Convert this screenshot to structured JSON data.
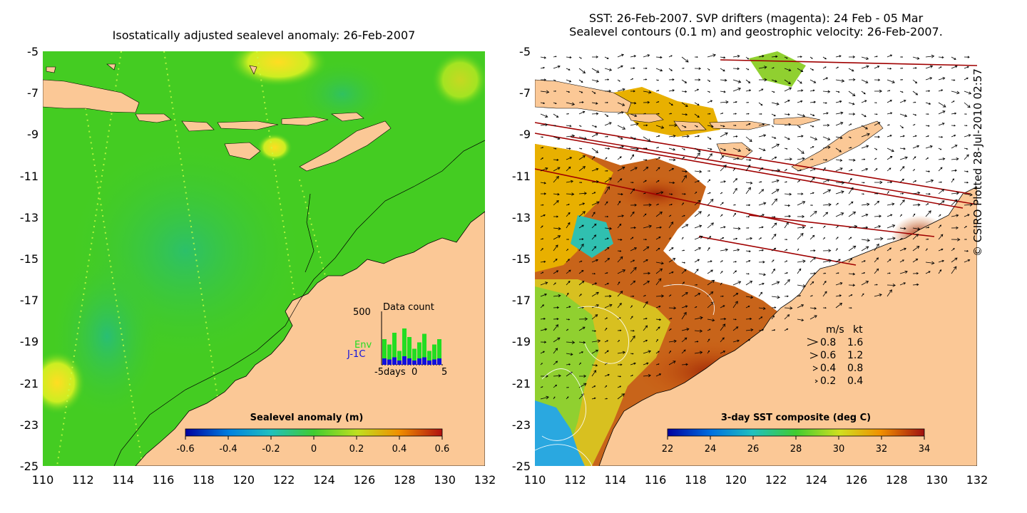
{
  "left_panel": {
    "title": "Isostatically adjusted sealevel anomaly: 26-Feb-2007",
    "colorbar": {
      "label": "Sealevel anomaly (m)",
      "ticks": [
        "-0.6",
        "-0.4",
        "-0.2",
        "0",
        "0.2",
        "0.4",
        "0.6"
      ]
    },
    "inset": {
      "title": "Data count",
      "y_max_label": "500",
      "x_labels": [
        "-5days",
        "0",
        "5"
      ],
      "series": [
        {
          "name": "Env",
          "color": "#22dd22",
          "values": [
            180,
            140,
            230,
            90,
            260,
            200,
            110,
            150,
            220,
            90,
            140,
            180
          ]
        },
        {
          "name": "J-1C",
          "color": "#1010dd",
          "values": [
            60,
            50,
            70,
            40,
            80,
            60,
            40,
            60,
            70,
            40,
            50,
            60
          ]
        }
      ]
    },
    "latitudes": [
      "-5",
      "-7",
      "-9",
      "-11",
      "-13",
      "-15",
      "-17",
      "-19",
      "-21",
      "-23",
      "-25"
    ],
    "longitudes": [
      "110",
      "112",
      "114",
      "116",
      "118",
      "120",
      "122",
      "124",
      "126",
      "128",
      "130",
      "132"
    ]
  },
  "right_panel": {
    "title_line1": "SST: 26-Feb-2007. SVP drifters (magenta): 24 Feb - 05 Mar",
    "title_line2": "Sealevel contours (0.1 m) and geostrophic velocity: 26-Feb-2007.",
    "colorbar": {
      "label": "3-day SST composite (deg C)",
      "ticks": [
        "22",
        "24",
        "26",
        "28",
        "30",
        "32",
        "34"
      ]
    },
    "velocity_legend": {
      "header_ms": "m/s",
      "header_kt": "kt",
      "rows": [
        {
          "ms": "0.8",
          "kt": "1.6"
        },
        {
          "ms": "0.6",
          "kt": "1.2"
        },
        {
          "ms": "0.4",
          "kt": "0.8"
        },
        {
          "ms": "0.2",
          "kt": "0.4"
        }
      ]
    },
    "latitudes": [
      "-5",
      "-7",
      "-9",
      "-11",
      "-13",
      "-15",
      "-17",
      "-19",
      "-21",
      "-23",
      "-25"
    ],
    "longitudes": [
      "110",
      "112",
      "114",
      "116",
      "118",
      "120",
      "122",
      "124",
      "126",
      "128",
      "130",
      "132"
    ]
  },
  "copyright": "© CSIRO Plotted 28-Jul-2010 02:57",
  "colors": {
    "land": "#fbc896",
    "sea_anomaly_base": "#44cc22",
    "sea_anomaly_low": "#22bb88",
    "sea_anomaly_high": "#bbee22",
    "sst_no_data": "#ffffff",
    "sst_warm": "#c86414",
    "sst_hot": "#aa2a0a",
    "sst_mid": "#e8b000",
    "sst_cool": "#2aa8e0",
    "velocity_arrows": "#000000",
    "drifters": "#a00000"
  }
}
